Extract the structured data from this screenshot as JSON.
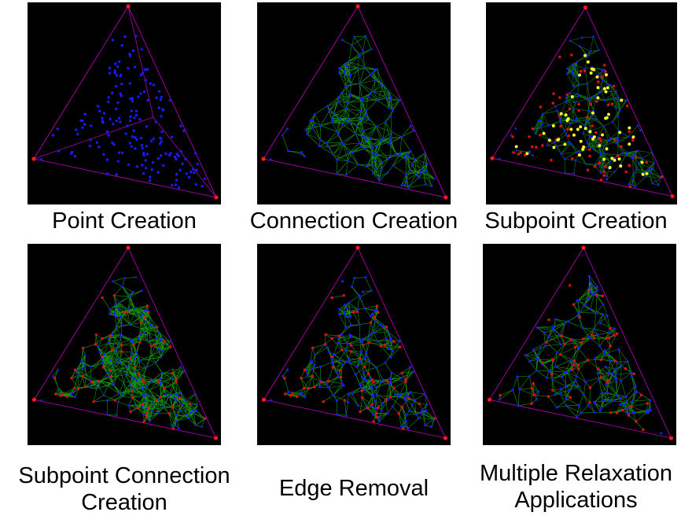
{
  "colors": {
    "background": "#ffffff",
    "panel": "#000000",
    "outline": "#b000b0",
    "corner_point": "#ff1a1a",
    "point": "#1a1aff",
    "subpoint_red": "#e01010",
    "subpoint_yellow": "#ffff33",
    "edge": "#18b418",
    "caption": "#000000"
  },
  "panels": [
    {
      "id": "point-creation",
      "caption": [
        "Point Creation"
      ]
    },
    {
      "id": "connection-creation",
      "caption": [
        "Connection Creation"
      ]
    },
    {
      "id": "subpoint-creation",
      "caption": [
        "Subpoint Creation"
      ]
    },
    {
      "id": "subpoint-connection-creation",
      "caption": [
        "Subpoint Connection",
        "Creation"
      ]
    },
    {
      "id": "edge-removal",
      "caption": [
        "Edge Removal"
      ]
    },
    {
      "id": "multiple-relaxation-applications",
      "caption": [
        "Multiple Relaxation",
        "Applications"
      ]
    }
  ]
}
